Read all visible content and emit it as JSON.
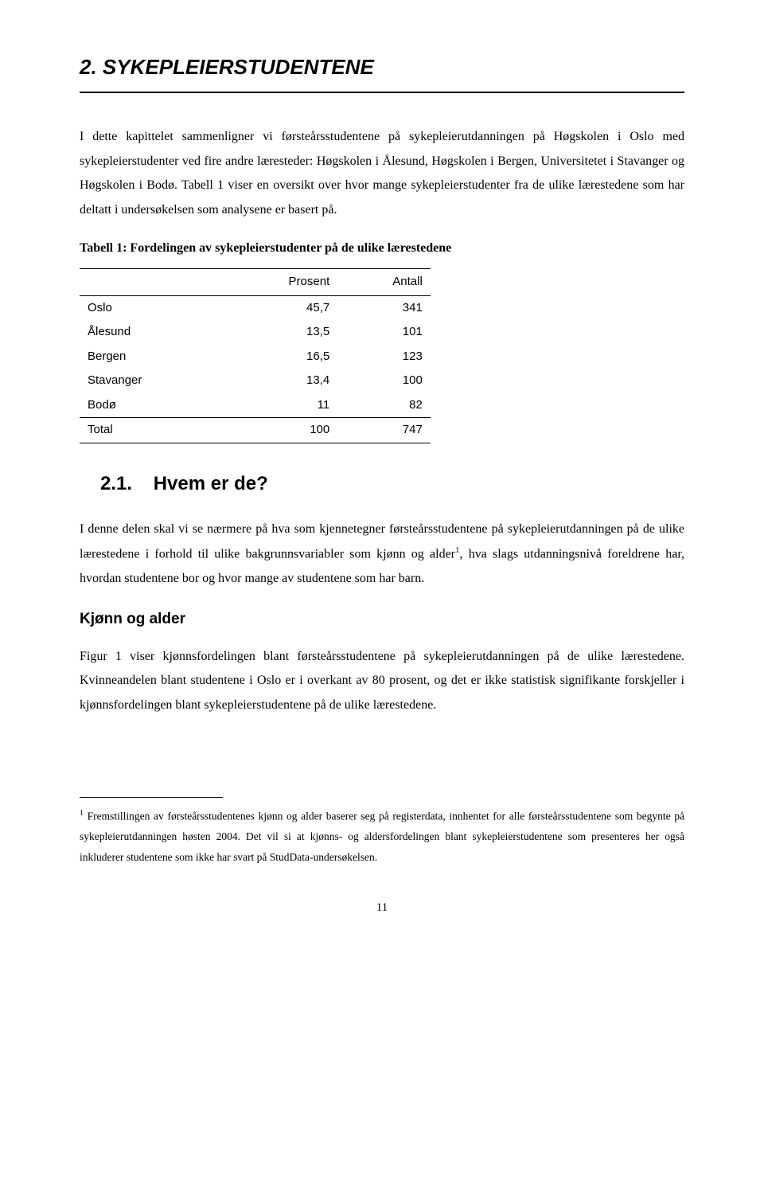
{
  "chapter": {
    "title": "2. SYKEPLEIERSTUDENTENE"
  },
  "para1": "I dette kapittelet sammenligner vi førsteårsstudentene på sykepleierutdanningen på Høgskolen i Oslo med sykepleierstudenter ved fire andre læresteder: Høgskolen i Ålesund, Høgskolen i Bergen, Universitetet i Stavanger og Høgskolen i Bodø. Tabell 1 viser en oversikt over hvor mange sykepleierstudenter fra de ulike lærestedene som har deltatt i undersøkelsen som analysene er basert på.",
  "table1": {
    "type": "table",
    "title": "Tabell 1: Fordelingen av sykepleierstudenter på de ulike lærestedene",
    "columns": [
      "",
      "Prosent",
      "Antall"
    ],
    "rows": [
      [
        "Oslo",
        "45,7",
        "341"
      ],
      [
        "Ålesund",
        "13,5",
        "101"
      ],
      [
        "Bergen",
        "16,5",
        "123"
      ],
      [
        "Stavanger",
        "13,4",
        "100"
      ],
      [
        "Bodø",
        "11",
        "82"
      ]
    ],
    "total_row": [
      "Total",
      "100",
      "747"
    ],
    "font_family": "Arial",
    "font_size": 15,
    "border_color": "#000000",
    "col_align": [
      "left",
      "right",
      "right"
    ]
  },
  "section21": {
    "number": "2.1.",
    "title": "Hvem er de?"
  },
  "para2_part1": "I denne delen skal vi se nærmere på hva som kjennetegner førsteårsstudentene på sykepleierutdanningen på de ulike lærestedene i forhold til ulike bakgrunnsvariabler som kjønn og alder",
  "para2_footref": "1",
  "para2_part2": ", hva slags utdanningsnivå foreldrene har, hvordan studentene bor og hvor mange av studentene som har barn.",
  "subheading1": "Kjønn og alder",
  "para3": "Figur 1 viser kjønnsfordelingen blant førsteårsstudentene på sykepleierutdanningen på de ulike lærestedene. Kvinneandelen blant studentene i Oslo er i overkant av 80 prosent, og det er ikke statistisk signifikante forskjeller i kjønnsfordelingen blant sykepleierstudentene på de ulike lærestedene.",
  "footnote1": {
    "marker": "1",
    "text": "Fremstillingen av førsteårsstudentenes kjønn og alder baserer seg på registerdata, innhentet for alle førsteårsstudentene som begynte på sykepleierutdanningen høsten 2004. Det vil si at kjønns- og aldersfordelingen blant sykepleierstudentene som presenteres her også inkluderer studentene som ikke har svart på StudData-undersøkelsen."
  },
  "page_number": "11"
}
